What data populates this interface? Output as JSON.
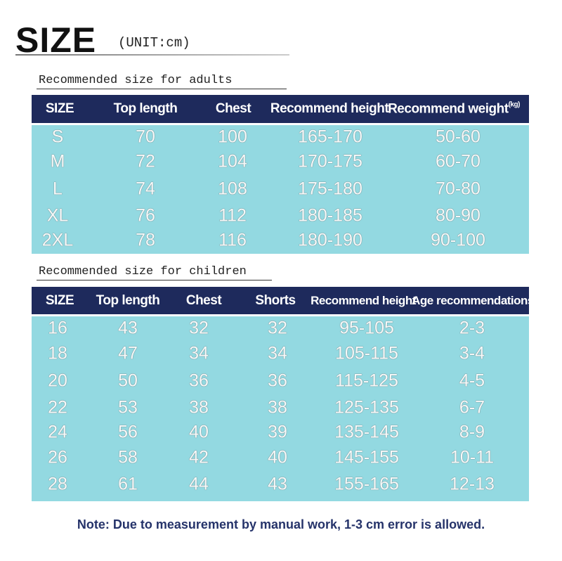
{
  "header": {
    "title": "SIZE",
    "unit": "(UNIT:cm)"
  },
  "adults": {
    "caption": "Recommended size for adults",
    "columns": [
      "SIZE",
      "Top length",
      "Chest",
      "Recommend height",
      "Recommend weight"
    ],
    "weight_unit": "(kg)",
    "rows": [
      [
        "S",
        "70",
        "100",
        "165-170",
        "50-60"
      ],
      [
        "M",
        "72",
        "104",
        "170-175",
        "60-70"
      ],
      [
        "L",
        "74",
        "108",
        "175-180",
        "70-80"
      ],
      [
        "XL",
        "76",
        "112",
        "180-185",
        "80-90"
      ],
      [
        "2XL",
        "78",
        "116",
        "180-190",
        "90-100"
      ]
    ]
  },
  "children": {
    "caption": "Recommended size for children",
    "columns": [
      "SIZE",
      "Top length",
      "Chest",
      "Shorts",
      "Recommend height",
      "Age recommendations"
    ],
    "rows": [
      [
        "16",
        "43",
        "32",
        "32",
        "95-105",
        "2-3"
      ],
      [
        "18",
        "47",
        "34",
        "34",
        "105-115",
        "3-4"
      ],
      [
        "20",
        "50",
        "36",
        "36",
        "115-125",
        "4-5"
      ],
      [
        "22",
        "53",
        "38",
        "38",
        "125-135",
        "6-7"
      ],
      [
        "24",
        "56",
        "40",
        "39",
        "135-145",
        "8-9"
      ],
      [
        "26",
        "58",
        "42",
        "40",
        "145-155",
        "10-11"
      ],
      [
        "28",
        "61",
        "44",
        "43",
        "155-165",
        "12-13"
      ]
    ]
  },
  "note": "Note: Due to measurement by manual work, 1-3 cm error is allowed."
}
